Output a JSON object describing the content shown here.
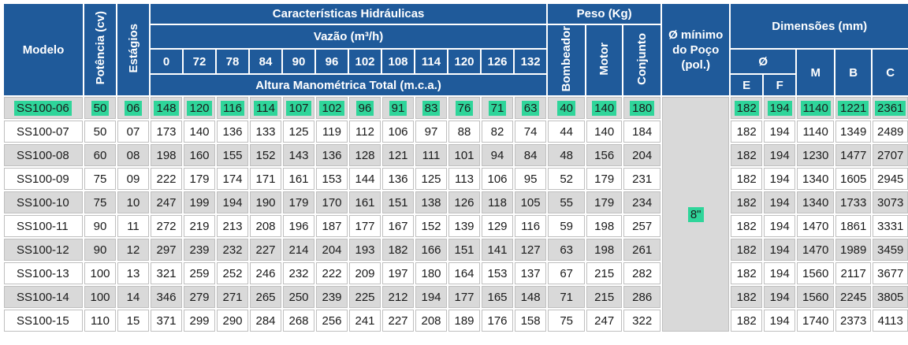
{
  "headers": {
    "modelo": "Modelo",
    "potencia": "Potência (cv)",
    "estagios": "Estágios",
    "caracteristicas": "Características Hidráulicas",
    "vazao": "Vazão (m³/h)",
    "altura": "Altura Manométrica Total (m.c.a.)",
    "peso": "Peso (Kg)",
    "bombeador": "Bombeador",
    "motor": "Motor",
    "conjunto": "Conjunto",
    "poco": "Ø mínimo do Poço (pol.)",
    "dimensoes": "Dimensões (mm)",
    "diam": "Ø",
    "e": "E",
    "f": "F",
    "m": "M",
    "b": "B",
    "c": "C"
  },
  "flow_rates": [
    "0",
    "72",
    "78",
    "84",
    "90",
    "96",
    "102",
    "108",
    "114",
    "120",
    "126",
    "132"
  ],
  "min_well": "8\"",
  "highlight_color": "#2fd59a",
  "header_color": "#1f5a9a",
  "rows": [
    {
      "model": "SS100-06",
      "power": "50",
      "stages": "06",
      "heads": [
        "148",
        "120",
        "116",
        "114",
        "107",
        "102",
        "96",
        "91",
        "83",
        "76",
        "71",
        "63"
      ],
      "weights": [
        "40",
        "140",
        "180"
      ],
      "dims": [
        "182",
        "194",
        "1140",
        "1221",
        "2361"
      ]
    },
    {
      "model": "SS100-07",
      "power": "50",
      "stages": "07",
      "heads": [
        "173",
        "140",
        "136",
        "133",
        "125",
        "119",
        "112",
        "106",
        "97",
        "88",
        "82",
        "74"
      ],
      "weights": [
        "44",
        "140",
        "184"
      ],
      "dims": [
        "182",
        "194",
        "1140",
        "1349",
        "2489"
      ]
    },
    {
      "model": "SS100-08",
      "power": "60",
      "stages": "08",
      "heads": [
        "198",
        "160",
        "155",
        "152",
        "143",
        "136",
        "128",
        "121",
        "111",
        "101",
        "94",
        "84"
      ],
      "weights": [
        "48",
        "156",
        "204"
      ],
      "dims": [
        "182",
        "194",
        "1230",
        "1477",
        "2707"
      ]
    },
    {
      "model": "SS100-09",
      "power": "75",
      "stages": "09",
      "heads": [
        "222",
        "179",
        "174",
        "171",
        "161",
        "153",
        "144",
        "136",
        "125",
        "113",
        "106",
        "95"
      ],
      "weights": [
        "52",
        "179",
        "231"
      ],
      "dims": [
        "182",
        "194",
        "1340",
        "1605",
        "2945"
      ]
    },
    {
      "model": "SS100-10",
      "power": "75",
      "stages": "10",
      "heads": [
        "247",
        "199",
        "194",
        "190",
        "179",
        "170",
        "161",
        "151",
        "138",
        "126",
        "118",
        "105"
      ],
      "weights": [
        "55",
        "179",
        "234"
      ],
      "dims": [
        "182",
        "194",
        "1340",
        "1733",
        "3073"
      ]
    },
    {
      "model": "SS100-11",
      "power": "90",
      "stages": "11",
      "heads": [
        "272",
        "219",
        "213",
        "208",
        "196",
        "187",
        "177",
        "167",
        "152",
        "139",
        "129",
        "116"
      ],
      "weights": [
        "59",
        "198",
        "257"
      ],
      "dims": [
        "182",
        "194",
        "1470",
        "1861",
        "3331"
      ]
    },
    {
      "model": "SS100-12",
      "power": "90",
      "stages": "12",
      "heads": [
        "297",
        "239",
        "232",
        "227",
        "214",
        "204",
        "193",
        "182",
        "166",
        "151",
        "141",
        "127"
      ],
      "weights": [
        "63",
        "198",
        "261"
      ],
      "dims": [
        "182",
        "194",
        "1470",
        "1989",
        "3459"
      ]
    },
    {
      "model": "SS100-13",
      "power": "100",
      "stages": "13",
      "heads": [
        "321",
        "259",
        "252",
        "246",
        "232",
        "222",
        "209",
        "197",
        "180",
        "164",
        "153",
        "137"
      ],
      "weights": [
        "67",
        "215",
        "282"
      ],
      "dims": [
        "182",
        "194",
        "1560",
        "2117",
        "3677"
      ]
    },
    {
      "model": "SS100-14",
      "power": "100",
      "stages": "14",
      "heads": [
        "346",
        "279",
        "271",
        "265",
        "250",
        "239",
        "225",
        "212",
        "194",
        "177",
        "165",
        "148"
      ],
      "weights": [
        "71",
        "215",
        "286"
      ],
      "dims": [
        "182",
        "194",
        "1560",
        "2245",
        "3805"
      ]
    },
    {
      "model": "SS100-15",
      "power": "110",
      "stages": "15",
      "heads": [
        "371",
        "299",
        "290",
        "284",
        "268",
        "256",
        "241",
        "227",
        "208",
        "189",
        "176",
        "158"
      ],
      "weights": [
        "75",
        "247",
        "322"
      ],
      "dims": [
        "182",
        "194",
        "1740",
        "2373",
        "4113"
      ]
    }
  ]
}
